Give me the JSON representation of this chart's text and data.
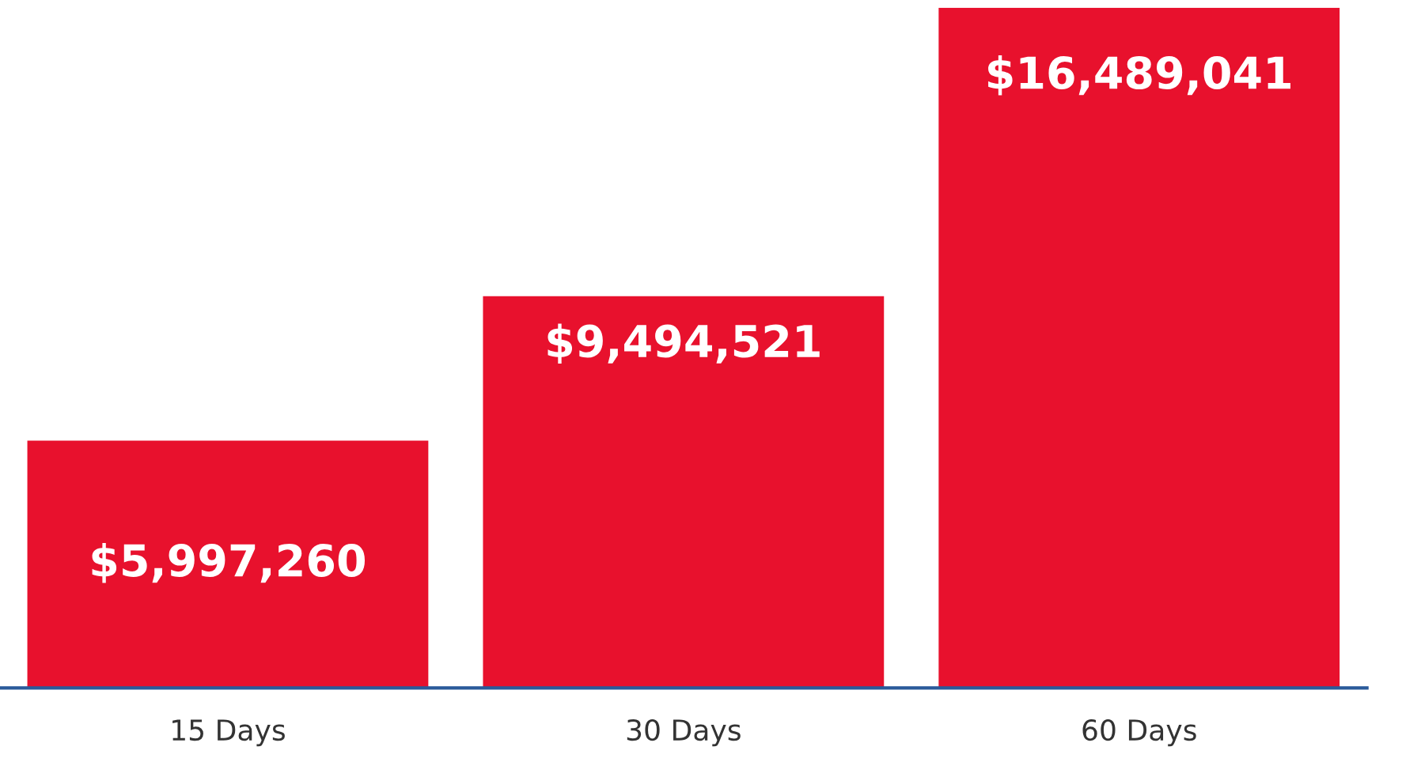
{
  "chart_data": {
    "type": "bar",
    "categories": [
      "15 Days",
      "30 Days",
      "60 Days"
    ],
    "values": [
      5997260,
      9494521,
      16489041
    ],
    "value_labels": [
      "$5,997,260",
      "$9,494,521",
      "$16,489,041"
    ],
    "color": "#e8112d",
    "grid": false,
    "legend": false
  }
}
